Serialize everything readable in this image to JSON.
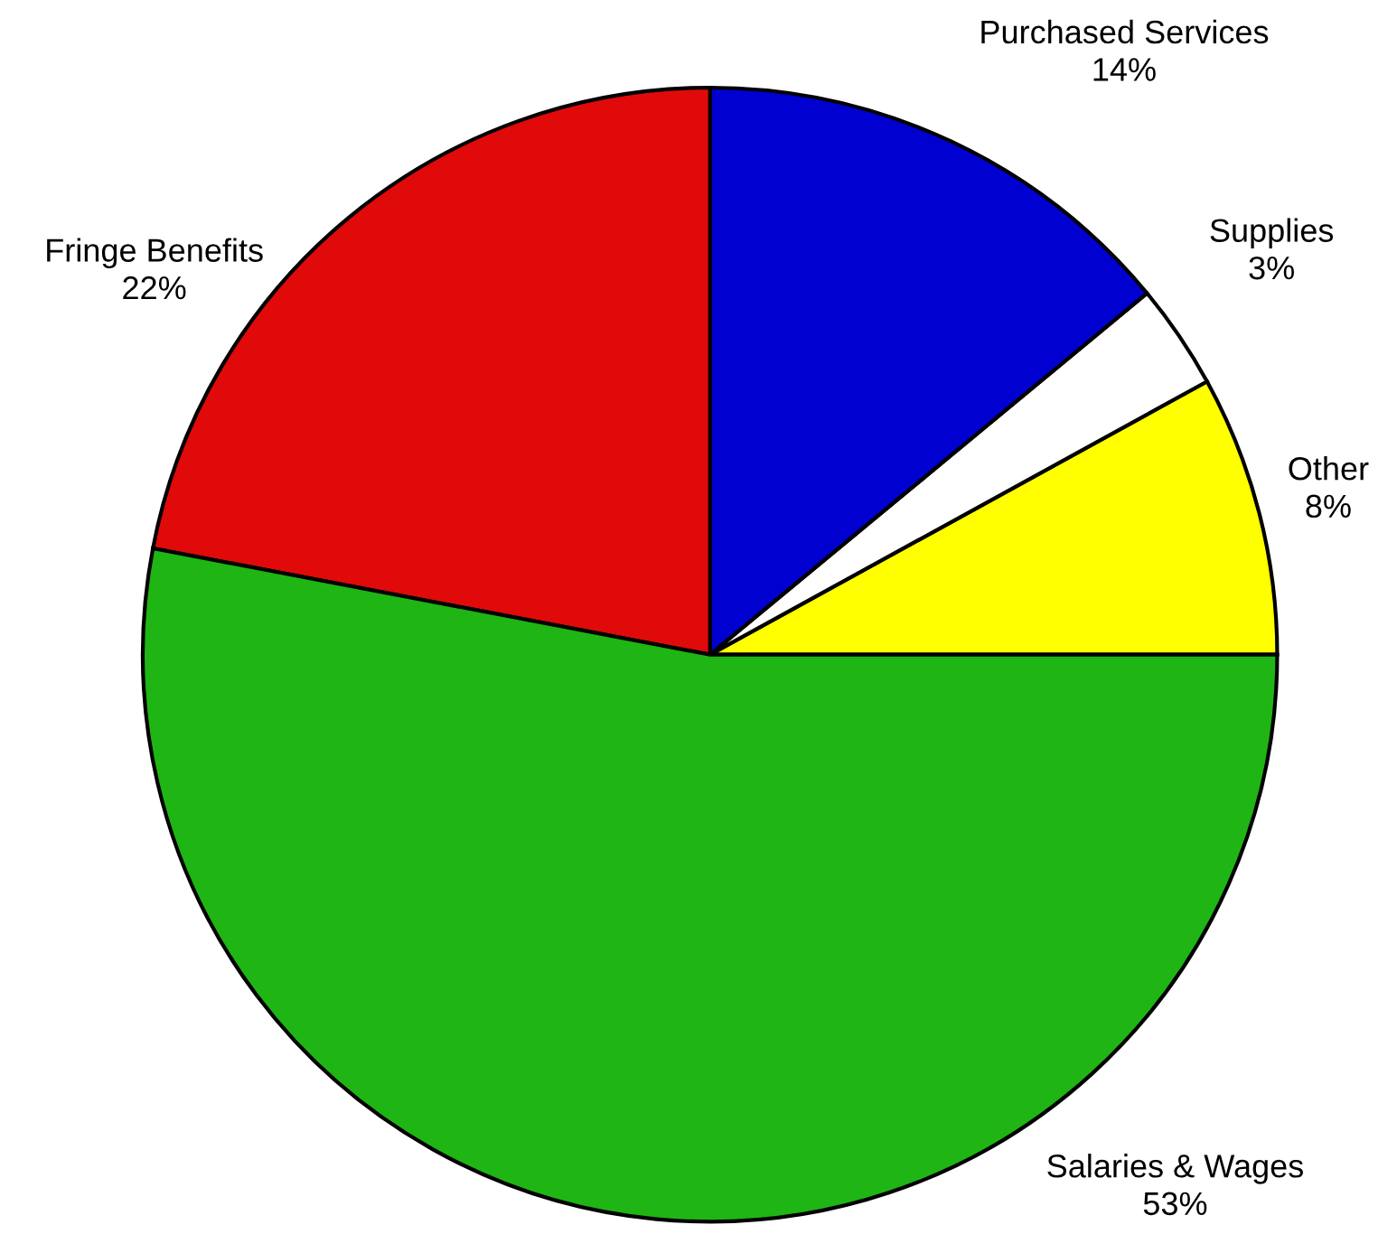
{
  "chart_data": {
    "type": "pie",
    "categories": [
      "Other",
      "Supplies",
      "Purchased Services",
      "Fringe Benefits",
      "Salaries & Wages"
    ],
    "values": [
      8,
      3,
      14,
      22,
      53
    ],
    "colors": [
      "#ffff00",
      "#ffffff",
      "#0000d0",
      "#e00a0a",
      "#1fb514"
    ],
    "value_labels": [
      "8%",
      "3%",
      "14%",
      "22%",
      "53%"
    ]
  }
}
